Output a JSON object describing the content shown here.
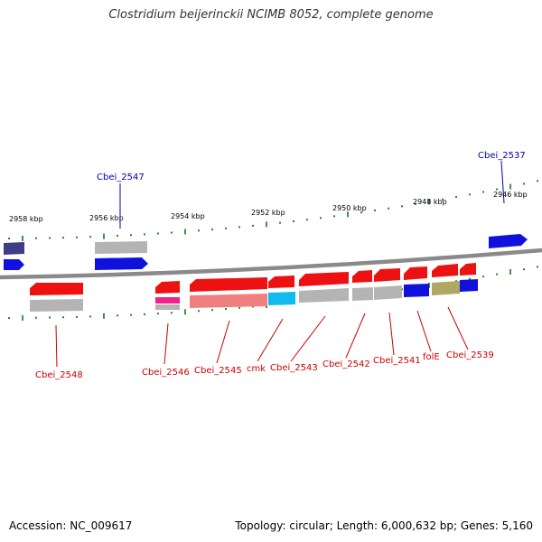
{
  "title": "Clostridium beijerinckii NCIMB 8052, complete genome",
  "footer": {
    "accession": "Accession: NC_009617",
    "info": "Topology: circular; Length: 6,000,632 bp; Genes: 5,160"
  },
  "colors": {
    "red": "#ee1111",
    "gray": "#b4b4b4",
    "blue": "#1111dd",
    "navy": "#3d3d88",
    "pink": "#ee2288",
    "salmon": "#f08080",
    "cyan": "#11bbee",
    "olive": "#b0a860",
    "backbone": "#8a8a8a",
    "tick": "#117711",
    "label_red": "#cc0000",
    "label_blue": "#0000aa"
  },
  "scale_labels": [
    "2958 kbp",
    "2956 kbp",
    "2954 kbp",
    "2952 kbp",
    "2950 kbp",
    "2948 kbp",
    "2946 kbp"
  ],
  "gene_labels_top": [
    "Cbei_2547",
    "Cbei_2537"
  ],
  "gene_labels_bottom": [
    "Cbei_2548",
    "Cbei_2546",
    "Cbei_2545",
    "cmk",
    "Cbei_2543",
    "Cbei_2542",
    "Cbei_2541",
    "folE",
    "Cbei_2539"
  ]
}
